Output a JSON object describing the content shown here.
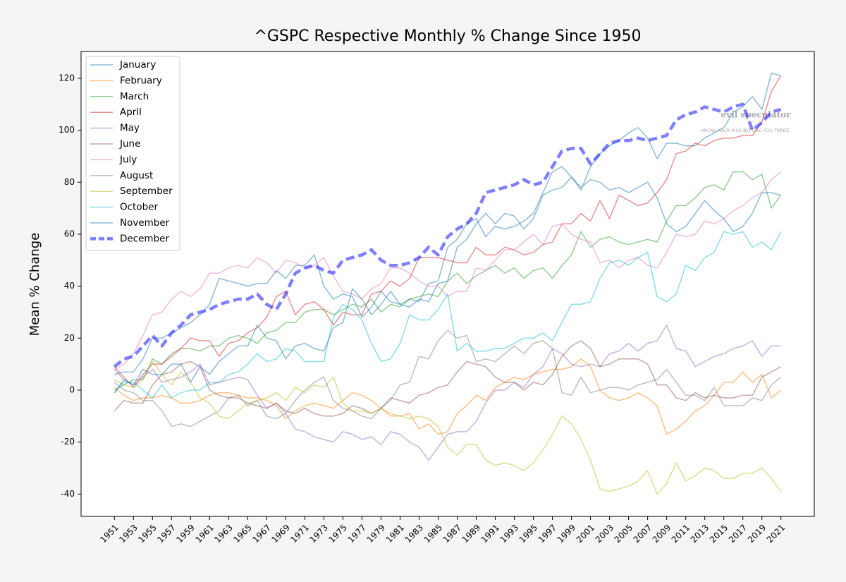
{
  "chart_data": {
    "type": "line",
    "title": "^GSPC Respective Monthly % Change Since 1950",
    "y_label": "Mean % Change",
    "x": [
      1951,
      1952,
      1953,
      1954,
      1955,
      1956,
      1957,
      1958,
      1959,
      1960,
      1961,
      1962,
      1963,
      1964,
      1965,
      1966,
      1967,
      1968,
      1969,
      1970,
      1971,
      1972,
      1973,
      1974,
      1975,
      1976,
      1977,
      1978,
      1979,
      1980,
      1981,
      1982,
      1983,
      1984,
      1985,
      1986,
      1987,
      1988,
      1989,
      1990,
      1991,
      1992,
      1993,
      1994,
      1995,
      1996,
      1997,
      1998,
      1999,
      2000,
      2001,
      2002,
      2003,
      2004,
      2005,
      2006,
      2007,
      2008,
      2009,
      2010,
      2011,
      2012,
      2013,
      2014,
      2015,
      2016,
      2017,
      2018,
      2019,
      2020,
      2021
    ],
    "xlim": [
      1947.5,
      2024.5
    ],
    "xticks": [
      1951,
      1953,
      1955,
      1957,
      1959,
      1961,
      1963,
      1965,
      1967,
      1969,
      1971,
      1973,
      1975,
      1977,
      1979,
      1981,
      1983,
      1985,
      1987,
      1989,
      1991,
      1993,
      1995,
      1997,
      1999,
      2001,
      2003,
      2005,
      2007,
      2009,
      2011,
      2013,
      2015,
      2017,
      2019,
      2021
    ],
    "ylim": [
      -48.6,
      130.3
    ],
    "yticks": [
      -40,
      -20,
      0,
      20,
      40,
      60,
      80,
      100,
      120
    ],
    "grid": false,
    "legend": "upper left",
    "series": [
      {
        "name": "January",
        "color": "#1f77b4",
        "style": "solid",
        "values": [
          6,
          7,
          7,
          12,
          20,
          20,
          22,
          24,
          26,
          29,
          33,
          43,
          42,
          41,
          40,
          41,
          41,
          46,
          43,
          48,
          48,
          52,
          40,
          35,
          37,
          36,
          28,
          32,
          38,
          34,
          33,
          35,
          34,
          41,
          42,
          55,
          58,
          64,
          66,
          59,
          63,
          62,
          63,
          65,
          68,
          76,
          84,
          86,
          82,
          77,
          86,
          91,
          94,
          96,
          99,
          101,
          97,
          89,
          95,
          95,
          94,
          94,
          97,
          99,
          101,
          107,
          109,
          113,
          108,
          122,
          121
        ]
      },
      {
        "name": "February",
        "color": "#ff7f0e",
        "style": "solid",
        "values": [
          1,
          -2,
          -4,
          -3,
          -3,
          -2,
          -3,
          -5,
          -5,
          -4,
          -2,
          -1,
          -1,
          -2,
          -3,
          -3,
          -4,
          -6,
          -11,
          -8,
          -6,
          -5,
          -6,
          -7,
          -4,
          -1,
          -2,
          -4,
          -7,
          -10,
          -10,
          -9,
          -15,
          -13,
          -17,
          -16,
          -9,
          -6,
          -2,
          -4,
          1,
          3,
          5,
          4,
          6,
          7,
          8,
          8,
          9,
          12,
          9,
          0,
          -3,
          -4,
          -3,
          -1,
          -3,
          -6,
          -17,
          -15,
          -12,
          -8,
          -6,
          -2,
          3,
          3,
          7,
          3,
          6,
          -3,
          0
        ]
      },
      {
        "name": "March",
        "color": "#2ca02c",
        "style": "solid",
        "values": [
          0,
          2,
          4,
          4,
          12,
          10,
          14,
          16,
          16,
          15,
          17,
          17,
          20,
          21,
          20,
          18,
          22,
          23,
          26,
          26,
          30,
          31,
          31,
          29,
          31,
          33,
          32,
          35,
          30,
          33,
          32,
          35,
          36,
          37,
          36,
          42,
          45,
          41,
          44,
          46,
          48,
          45,
          47,
          43,
          46,
          47,
          43,
          48,
          52,
          61,
          55,
          58,
          59,
          57,
          56,
          57,
          58,
          57,
          65,
          71,
          71,
          74,
          78,
          79,
          77,
          84,
          84,
          81,
          83,
          70,
          75
        ]
      },
      {
        "name": "April",
        "color": "#d62728",
        "style": "solid",
        "values": [
          9,
          5,
          1,
          6,
          10,
          10,
          13,
          16,
          20,
          19,
          19,
          13,
          18,
          19,
          22,
          24,
          28,
          36,
          38,
          29,
          33,
          34,
          31,
          25,
          30,
          29,
          29,
          37,
          38,
          42,
          40,
          43,
          51,
          51,
          51,
          50,
          49,
          49,
          55,
          52,
          52,
          55,
          54,
          52,
          53,
          56,
          57,
          64,
          64,
          68,
          65,
          73,
          66,
          75,
          73,
          71,
          72,
          76,
          81,
          91,
          92,
          95,
          94,
          96,
          97,
          97,
          98,
          98,
          103,
          115,
          121
        ]
      },
      {
        "name": "May",
        "color": "#9467bd",
        "style": "solid",
        "values": [
          8,
          4,
          2,
          5,
          8,
          3,
          4,
          5,
          7,
          10,
          2,
          3,
          4,
          5,
          4,
          -2,
          -7,
          -5,
          -9,
          -15,
          -16,
          -18,
          -19,
          -20,
          -16,
          -17,
          -19,
          -18,
          -21,
          -16,
          -17,
          -20,
          -22,
          -27,
          -22,
          -17,
          -16,
          -16,
          -12,
          -5,
          0,
          0,
          3,
          1,
          6,
          9,
          16,
          14,
          10,
          9,
          10,
          9,
          14,
          15,
          18,
          15,
          18,
          19,
          25,
          16,
          15,
          9,
          11,
          13,
          14,
          16,
          17,
          19,
          13,
          17,
          17
        ]
      },
      {
        "name": "June",
        "color": "#8c564b",
        "style": "solid",
        "values": [
          -8,
          -4,
          -5,
          -5,
          2,
          6,
          7,
          10,
          11,
          9,
          0,
          -2,
          -3,
          -3,
          -5,
          -6,
          -7,
          -5,
          -8,
          -9,
          -7,
          -9,
          -10,
          -10,
          -9,
          -6,
          -7,
          -9,
          -7,
          -3,
          -4,
          -5,
          -2,
          -1,
          1,
          2,
          7,
          11,
          10,
          9,
          5,
          3,
          3,
          0,
          3,
          2,
          6,
          13,
          17,
          19,
          16,
          9,
          10,
          12,
          12,
          12,
          10,
          2,
          2,
          -3,
          -4,
          -1,
          -3,
          -2,
          -3,
          -3,
          -2,
          -2,
          5,
          7,
          9
        ]
      },
      {
        "name": "July",
        "color": "#e377c2",
        "style": "solid",
        "values": [
          8,
          10,
          14,
          21,
          29,
          30,
          35,
          38,
          36,
          39,
          45,
          45,
          47,
          48,
          47,
          51,
          49,
          45,
          50,
          49,
          47,
          48,
          51,
          44,
          38,
          37,
          35,
          39,
          41,
          47,
          47,
          45,
          42,
          40,
          40,
          36,
          38,
          38,
          47,
          46,
          50,
          54,
          54,
          57,
          60,
          56,
          63,
          64,
          60,
          58,
          57,
          49,
          50,
          47,
          50,
          51,
          48,
          47,
          53,
          60,
          59,
          60,
          65,
          64,
          66,
          69,
          71,
          74,
          76,
          81,
          84
        ]
      },
      {
        "name": "August",
        "color": "#7f7f7f",
        "style": "solid",
        "values": [
          3,
          0,
          -1,
          -4,
          -4,
          -8,
          -14,
          -13,
          -14,
          -12,
          -10,
          -8,
          -3,
          -2,
          -6,
          -4,
          -10,
          -11,
          -9,
          -4,
          0,
          3,
          5,
          -4,
          -7,
          -8,
          -10,
          -11,
          -7,
          -4,
          2,
          3,
          13,
          12,
          19,
          23,
          20,
          21,
          11,
          12,
          11,
          14,
          17,
          14,
          18,
          19,
          16,
          -1,
          -2,
          5,
          -1,
          0,
          1,
          1,
          0,
          2,
          3,
          4,
          8,
          3,
          -2,
          -2,
          -4,
          1,
          -6,
          -6,
          -6,
          -3,
          -4,
          2,
          5
        ]
      },
      {
        "name": "September",
        "color": "#bcbd22",
        "style": "solid",
        "values": [
          4,
          2,
          1,
          4,
          11,
          6,
          2,
          7,
          3,
          -3,
          -5,
          -10,
          -11,
          -8,
          -5,
          -4,
          -3,
          -1,
          -4,
          1,
          -1,
          2,
          1,
          5,
          -5,
          -8,
          -8,
          -9,
          -7,
          -9,
          -10,
          -11,
          -10,
          -11,
          -14,
          -22,
          -25,
          -21,
          -21,
          -27,
          -29,
          -28,
          -29,
          -31,
          -28,
          -23,
          -17,
          -10,
          -13,
          -19,
          -27,
          -38,
          -39,
          -38,
          -37,
          -35,
          -31,
          -40,
          -36,
          -28,
          -35,
          -33,
          -30,
          -31,
          -34,
          -34,
          -32,
          -32,
          -30,
          -34,
          -39
        ]
      },
      {
        "name": "October",
        "color": "#17becf",
        "style": "solid",
        "values": [
          -1,
          3,
          3,
          0,
          -3,
          2,
          -3,
          -1,
          0,
          0,
          3,
          3,
          6,
          7,
          10,
          14,
          11,
          12,
          16,
          15,
          11,
          11,
          11,
          28,
          33,
          31,
          27,
          18,
          11,
          12,
          18,
          29,
          27,
          27,
          31,
          37,
          15,
          18,
          15,
          15,
          16,
          16,
          18,
          20,
          20,
          22,
          19,
          26,
          33,
          33,
          34,
          43,
          49,
          50,
          48,
          51,
          53,
          36,
          34,
          37,
          48,
          46,
          51,
          53,
          61,
          60,
          61,
          55,
          57,
          54,
          61
        ]
      },
      {
        "name": "November",
        "color": "#1f77b4",
        "style": "solid",
        "values": [
          -1,
          4,
          2,
          8,
          6,
          6,
          10,
          10,
          3,
          9,
          6,
          11,
          14,
          17,
          17,
          25,
          20,
          19,
          12,
          17,
          18,
          16,
          15,
          24,
          26,
          39,
          35,
          29,
          33,
          38,
          33,
          32,
          35,
          34,
          41,
          42,
          55,
          58,
          64,
          68,
          64,
          68,
          67,
          62,
          66,
          75,
          77,
          78,
          82,
          78,
          81,
          80,
          77,
          78,
          76,
          78,
          80,
          74,
          64,
          61,
          63,
          68,
          73,
          69,
          66,
          61,
          63,
          68,
          76,
          76,
          75
        ]
      },
      {
        "name": "December",
        "color": "#0000ff",
        "style": "dashed",
        "values": [
          9,
          12,
          13,
          17,
          21,
          17,
          22,
          25,
          29,
          30,
          31,
          33,
          34,
          35,
          35,
          37,
          33,
          31,
          37,
          45,
          47,
          48,
          46,
          45,
          50,
          51,
          52,
          54,
          50,
          48,
          48,
          49,
          51,
          55,
          52,
          59,
          62,
          64,
          68,
          76,
          77,
          78,
          79,
          81,
          79,
          80,
          86,
          92,
          93,
          93,
          87,
          91,
          95,
          96,
          96,
          97,
          96,
          97,
          98,
          104,
          106,
          107,
          109,
          108,
          107,
          109,
          110,
          100,
          103,
          107,
          108
        ]
      }
    ]
  },
  "watermark": {
    "brand": "evil speculator",
    "tagline": "KNOW YOUR RISK BEFORE YOU TRADE"
  }
}
